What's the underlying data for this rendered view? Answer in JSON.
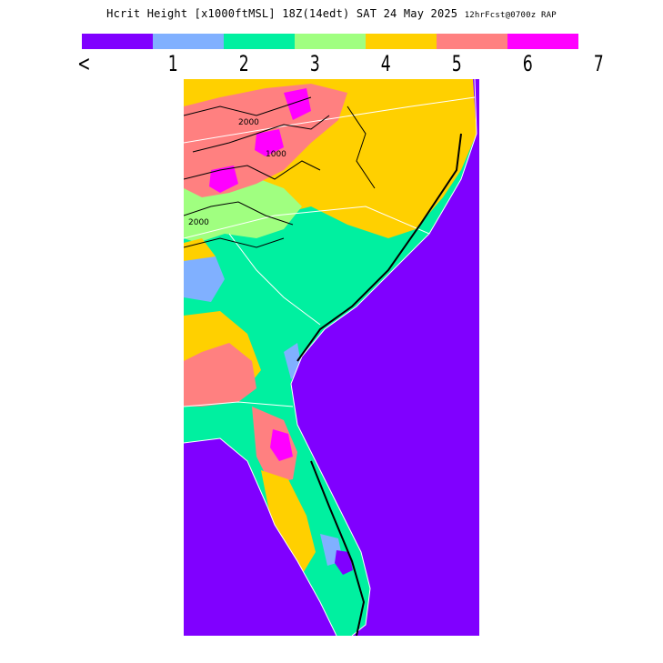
{
  "title": {
    "main": "Hcrit Height [x1000ftMSL] 18Z(14edt) SAT 24 May 2025",
    "forecast": "12hrFcst@0700z RAP"
  },
  "legend": {
    "colors": [
      "#8000ff",
      "#80b0ff",
      "#00f0a0",
      "#a0ff80",
      "#ffd000",
      "#ff8080",
      "#ff00ff"
    ],
    "tick_labels": [
      "<",
      "1",
      "2",
      "3",
      "4",
      "5",
      "6",
      "7"
    ]
  },
  "map": {
    "contour_labels": [
      "2000",
      "1000",
      "2000"
    ],
    "ocean_color": "#8000ff",
    "contour_color": "#000000",
    "boundary_color": "#ffffff"
  }
}
